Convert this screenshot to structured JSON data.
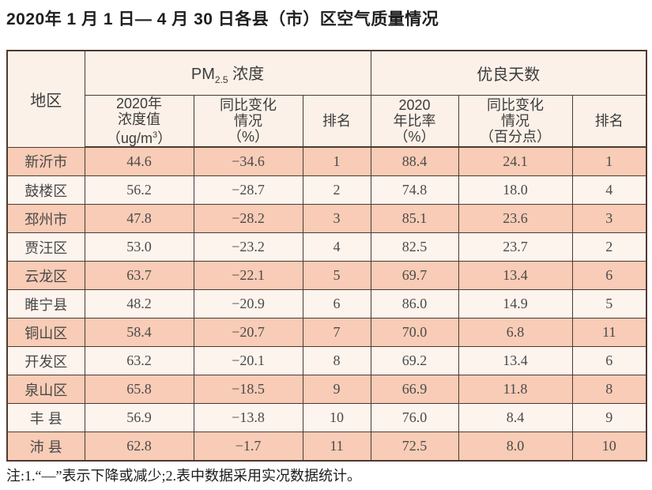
{
  "page": {
    "title": "2020年 1 月 1 日— 4 月 30 日各县（市）区空气质量情况",
    "note": "注:1.“—”表示下降或减少;2.表中数据采用实况数据统计。"
  },
  "colors": {
    "row_salmon": "#f8ccb6",
    "row_light": "#fdf4ee",
    "header_bg": "#fbf1e8",
    "border": "#4e3a31",
    "text": "#4a4a4a"
  },
  "table": {
    "region_header": "地区",
    "group_pm": {
      "prefix": "PM",
      "sub": "2.5",
      "suffix": " 浓度"
    },
    "group_good": "优良天数",
    "sub_headers": {
      "pm_value_l1": "2020年",
      "pm_value_l2": "浓度值",
      "pm_value_l3_pre": "（ug/m",
      "pm_value_sup": "3",
      "pm_value_l3_post": "）",
      "pm_change_l1": "同比变化",
      "pm_change_l2": "情况",
      "pm_change_l3": "（%）",
      "pm_rank": "排名",
      "good_ratio_l1": "2020",
      "good_ratio_l2": "年比率",
      "good_ratio_l3": "（%）",
      "good_change_l1": "同比变化",
      "good_change_l2": "情况",
      "good_change_l3": "（百分点）",
      "good_rank": "排名"
    },
    "rows": [
      {
        "region": "新沂市",
        "pm_value": "44.6",
        "pm_change": "−34.6",
        "pm_rank": "1",
        "good_ratio": "88.4",
        "good_change": "24.1",
        "good_rank": "1"
      },
      {
        "region": "鼓楼区",
        "pm_value": "56.2",
        "pm_change": "−28.7",
        "pm_rank": "2",
        "good_ratio": "74.8",
        "good_change": "18.0",
        "good_rank": "4"
      },
      {
        "region": "邳州市",
        "pm_value": "47.8",
        "pm_change": "−28.2",
        "pm_rank": "3",
        "good_ratio": "85.1",
        "good_change": "23.6",
        "good_rank": "3"
      },
      {
        "region": "贾汪区",
        "pm_value": "53.0",
        "pm_change": "−23.2",
        "pm_rank": "4",
        "good_ratio": "82.5",
        "good_change": "23.7",
        "good_rank": "2"
      },
      {
        "region": "云龙区",
        "pm_value": "63.7",
        "pm_change": "−22.1",
        "pm_rank": "5",
        "good_ratio": "69.7",
        "good_change": "13.4",
        "good_rank": "6"
      },
      {
        "region": "睢宁县",
        "pm_value": "48.2",
        "pm_change": "−20.9",
        "pm_rank": "6",
        "good_ratio": "86.0",
        "good_change": "14.9",
        "good_rank": "5"
      },
      {
        "region": "铜山区",
        "pm_value": "58.4",
        "pm_change": "−20.7",
        "pm_rank": "7",
        "good_ratio": "70.0",
        "good_change": "6.8",
        "good_rank": "11"
      },
      {
        "region": "开发区",
        "pm_value": "63.2",
        "pm_change": "−20.1",
        "pm_rank": "8",
        "good_ratio": "69.2",
        "good_change": "13.4",
        "good_rank": "6"
      },
      {
        "region": "泉山区",
        "pm_value": "65.8",
        "pm_change": "−18.5",
        "pm_rank": "9",
        "good_ratio": "66.9",
        "good_change": "11.8",
        "good_rank": "8"
      },
      {
        "region": "丰 县",
        "pm_value": "56.9",
        "pm_change": "−13.8",
        "pm_rank": "10",
        "good_ratio": "76.0",
        "good_change": "8.4",
        "good_rank": "9"
      },
      {
        "region": "沛 县",
        "pm_value": "62.8",
        "pm_change": "−1.7",
        "pm_rank": "11",
        "good_ratio": "72.5",
        "good_change": "8.0",
        "good_rank": "10"
      }
    ]
  }
}
